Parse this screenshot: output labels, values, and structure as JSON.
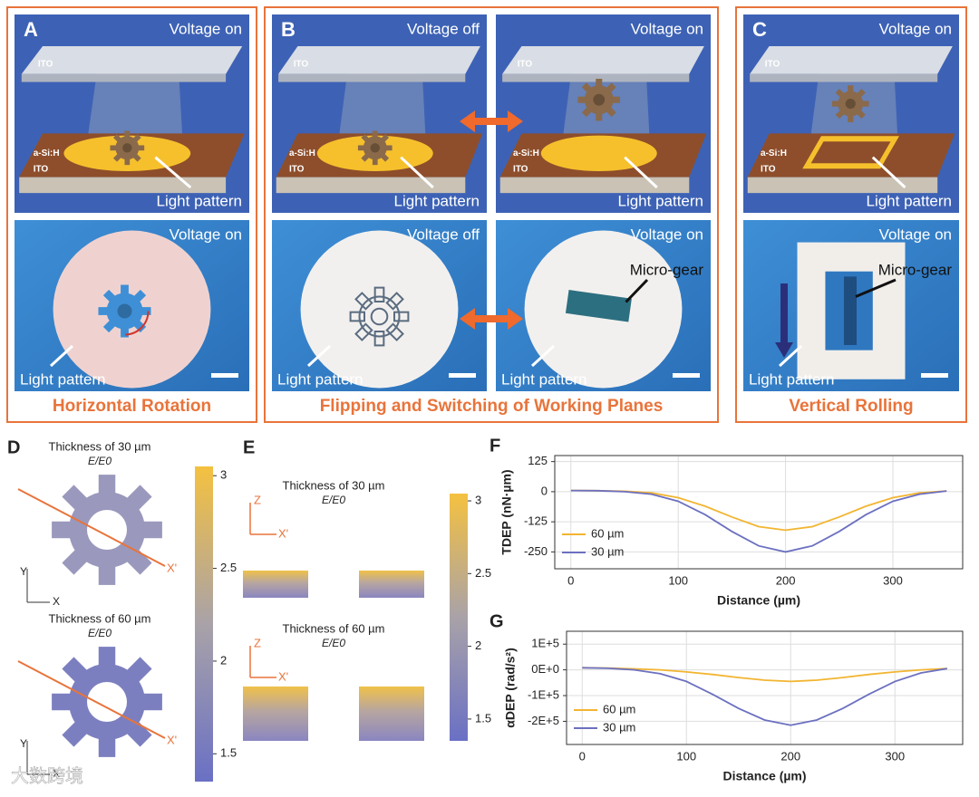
{
  "panels": [
    {
      "label": "A",
      "caption": "Horizontal Rotation",
      "scenes": [
        {
          "voltage": "Voltage on",
          "top_electrode": "ITO",
          "layer": "a-Si:H",
          "bottom_electrode": "ITO",
          "pointer": "Light pattern"
        }
      ],
      "photos": [
        {
          "voltage": "Voltage on",
          "pointer": "Light pattern"
        }
      ]
    },
    {
      "label": "B",
      "caption": "Flipping and Switching of Working Planes",
      "scenes": [
        {
          "voltage": "Voltage off",
          "top_electrode": "ITO",
          "layer": "a-Si:H",
          "bottom_electrode": "ITO",
          "pointer": "Light pattern"
        },
        {
          "voltage": "Voltage on",
          "top_electrode": "ITO",
          "layer": "a-Si:H",
          "bottom_electrode": "ITO",
          "pointer": "Light pattern"
        }
      ],
      "photos": [
        {
          "voltage": "Voltage off",
          "pointer": "Light pattern"
        },
        {
          "voltage": "Voltage on",
          "object": "Micro-gear",
          "pointer": "Light pattern"
        }
      ]
    },
    {
      "label": "C",
      "caption": "Vertical Rolling",
      "scenes": [
        {
          "voltage": "Voltage on",
          "top_electrode": "ITO",
          "layer": "a-Si:H",
          "bottom_electrode": "ITO",
          "pointer": "Light pattern"
        }
      ],
      "photos": [
        {
          "voltage": "Voltage on",
          "object": "Micro-gear",
          "pointer": "Light pattern"
        }
      ]
    }
  ],
  "panel_d": {
    "label": "D",
    "y_axis": "Y",
    "x_axis": "X",
    "cut": "X'",
    "maps": [
      {
        "title": "Thickness of 30 µm",
        "quantity": "E/E0"
      },
      {
        "title": "Thickness of 60 µm",
        "quantity": "E/E0"
      }
    ],
    "colorbar": {
      "lim": [
        1.35,
        3.05
      ],
      "ticks": [
        3,
        2.5,
        2,
        1.5
      ]
    }
  },
  "panel_e": {
    "label": "E",
    "z_axis": "Z",
    "x_axis": "X'",
    "maps": [
      {
        "title": "Thickness of 30 µm",
        "quantity": "E/E0"
      },
      {
        "title": "Thickness of 60 µm",
        "quantity": "E/E0"
      }
    ],
    "colorbar": {
      "lim": [
        1.35,
        3.05
      ],
      "ticks": [
        3,
        2.5,
        2,
        1.5
      ]
    }
  },
  "watermark": "大数跨境",
  "chart_data": [
    {
      "type": "line",
      "label": "F",
      "x_label": "Distance (µm)",
      "y_label": "TDEP (nN·µm)",
      "x": [
        0,
        25,
        50,
        75,
        100,
        125,
        150,
        175,
        200,
        225,
        250,
        275,
        300,
        325,
        350
      ],
      "series": [
        {
          "name": "60 µm",
          "color": "#f2b531",
          "values": [
            5,
            4,
            2,
            -5,
            -25,
            -60,
            -105,
            -145,
            -160,
            -145,
            -105,
            -60,
            -25,
            -5,
            3
          ]
        },
        {
          "name": "30 µm",
          "color": "#6c70c0",
          "values": [
            5,
            4,
            0,
            -10,
            -40,
            -95,
            -165,
            -225,
            -250,
            -225,
            -165,
            -95,
            -40,
            -10,
            3
          ]
        }
      ],
      "xlim": [
        -15,
        365
      ],
      "ylim": [
        -320,
        150
      ],
      "xticks": [
        0,
        100,
        200,
        300
      ],
      "yticks": [
        125,
        0,
        -125,
        -250
      ],
      "grid": true,
      "legend": "lower left"
    },
    {
      "type": "line",
      "label": "G",
      "x_label": "Distance (µm)",
      "y_label": "αDEP (rad/s²)",
      "x": [
        0,
        25,
        50,
        75,
        100,
        125,
        150,
        175,
        200,
        225,
        250,
        275,
        300,
        325,
        350
      ],
      "series": [
        {
          "name": "60 µm",
          "color": "#f2b531",
          "values": [
            8000,
            7000,
            4000,
            0,
            -8000,
            -18000,
            -30000,
            -40000,
            -45000,
            -40000,
            -30000,
            -18000,
            -8000,
            0,
            5000
          ]
        },
        {
          "name": "30 µm",
          "color": "#6c70c0",
          "values": [
            8000,
            6000,
            0,
            -15000,
            -45000,
            -95000,
            -150000,
            -195000,
            -215000,
            -195000,
            -150000,
            -95000,
            -45000,
            -12000,
            5000
          ]
        }
      ],
      "xlim": [
        -15,
        365
      ],
      "ylim": [
        -290000,
        150000
      ],
      "xticks": [
        0,
        100,
        200,
        300
      ],
      "yticks": [
        {
          "value": 100000,
          "label": "1E+5"
        },
        {
          "value": 0,
          "label": "0E+0"
        },
        {
          "value": -100000,
          "label": "-1E+5"
        },
        {
          "value": -200000,
          "label": "-2E+5"
        }
      ],
      "grid": true,
      "legend": "lower left"
    }
  ]
}
